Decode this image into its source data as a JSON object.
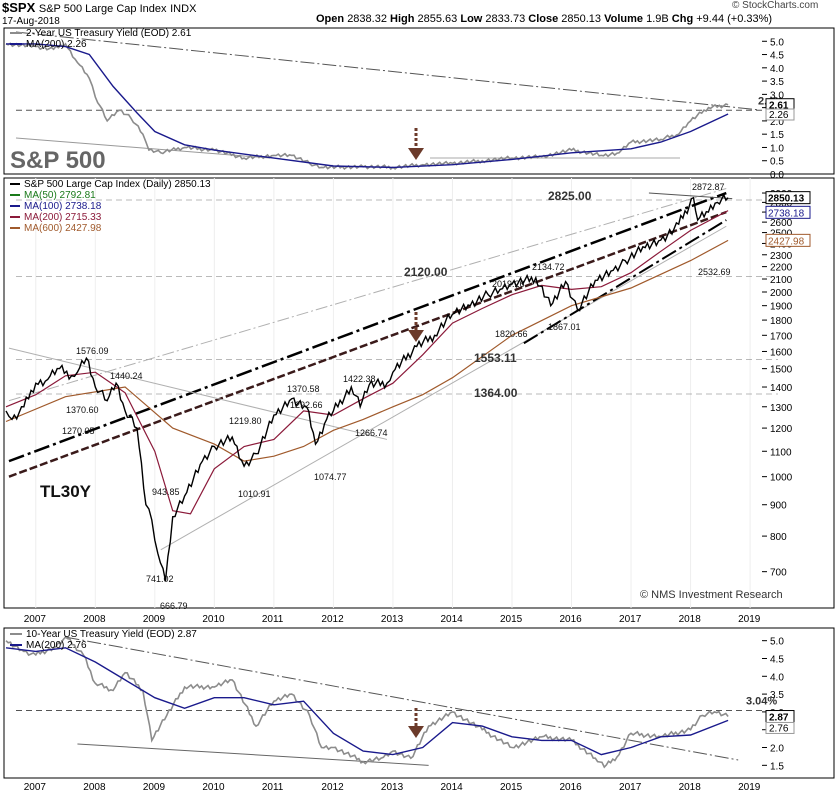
{
  "header": {
    "symbol": "$SPX",
    "name": "S&P 500 Large Cap Index",
    "exchange": "INDX",
    "date": "17-Aug-2018",
    "watermark": "© StockCharts.com",
    "open_label": "Open",
    "open": "2838.32",
    "high_label": "High",
    "high": "2855.63",
    "low_label": "Low",
    "low": "2833.73",
    "close_label": "Close",
    "close": "2850.13",
    "volume_label": "Volume",
    "volume": "1.9B",
    "chg_label": "Chg",
    "chg": "+9.44 (+0.33%)"
  },
  "colors": {
    "price": "#000000",
    "ma50": "#1a7a1a",
    "ma100": "#1a1a8c",
    "ma200_price": "#8b1a3a",
    "ma600": "#a05a2c",
    "yield_line": "#8c8c8c",
    "yield_ma": "#1a1a8c",
    "trend_dark": "#000000",
    "trend_brown": "#3a1a1a",
    "trend_light": "#b0b0b0",
    "arrow": "#6b3a2a"
  },
  "chart_data": [
    {
      "type": "line",
      "title": "2-Year US Treasury Yield (EOD) 2.61",
      "overlay_label": "S&P 500",
      "legend": [
        "2-Year US Treasury Yield (EOD) 2.61",
        "MA(200) 2.26"
      ],
      "x_ticks": [],
      "y_ticks": [
        "5.0",
        "4.5",
        "4.0",
        "3.5",
        "3.0",
        "2.5",
        "2.0",
        "1.5",
        "1.0",
        "0.5",
        "0.0"
      ],
      "ylim": [
        0,
        5.5
      ],
      "xlim": [
        2006.5,
        2019.2
      ],
      "last_value": "2.61",
      "ma_value": "2.26",
      "annotations": [
        "2.4%"
      ],
      "series": [
        {
          "name": "2-Year Yield",
          "x": [
            2006.5,
            2007.0,
            2007.3,
            2007.5,
            2007.7,
            2007.9,
            2008.0,
            2008.2,
            2008.4,
            2008.6,
            2008.8,
            2008.9,
            2009.1,
            2009.5,
            2010.0,
            2010.5,
            2011.0,
            2011.3,
            2011.6,
            2011.8,
            2012.5,
            2013.0,
            2013.5,
            2014.0,
            2014.5,
            2015.0,
            2015.5,
            2016.0,
            2016.5,
            2016.8,
            2017.0,
            2017.5,
            2017.8,
            2018.0,
            2018.3,
            2018.63
          ],
          "values": [
            4.9,
            4.8,
            4.7,
            4.9,
            4.2,
            3.6,
            2.9,
            2.0,
            2.4,
            2.1,
            1.5,
            0.9,
            0.8,
            1.0,
            0.9,
            0.6,
            0.7,
            0.7,
            0.4,
            0.25,
            0.27,
            0.25,
            0.35,
            0.4,
            0.5,
            0.6,
            0.65,
            0.9,
            0.7,
            0.8,
            1.2,
            1.3,
            1.5,
            2.0,
            2.5,
            2.61
          ]
        },
        {
          "name": "MA(200)",
          "x": [
            2006.5,
            2007.0,
            2007.5,
            2007.9,
            2008.3,
            2008.7,
            2009.0,
            2009.5,
            2010.0,
            2011.0,
            2012.0,
            2013.0,
            2014.0,
            2015.0,
            2016.0,
            2017.0,
            2017.5,
            2018.0,
            2018.63
          ],
          "values": [
            4.9,
            4.9,
            4.8,
            4.5,
            3.3,
            2.3,
            1.6,
            1.1,
            0.9,
            0.6,
            0.3,
            0.25,
            0.35,
            0.55,
            0.8,
            0.95,
            1.2,
            1.6,
            2.26
          ]
        }
      ]
    },
    {
      "type": "line",
      "title": "S&P 500 Large Cap Index (Daily) 2850.13",
      "legend": [
        "S&P 500 Large Cap Index (Daily) 2850.13",
        "MA(50) 2792.81",
        "MA(100) 2738.18",
        "MA(200) 2715.33",
        "MA(600) 2427.98"
      ],
      "x_ticks": [
        "2007",
        "2008",
        "2009",
        "2010",
        "2011",
        "2012",
        "2013",
        "2014",
        "2015",
        "2016",
        "2017",
        "2018",
        "2019"
      ],
      "y_ticks": [
        "2900",
        "2800",
        "2700",
        "2600",
        "2500",
        "2400",
        "2300",
        "2200",
        "2100",
        "2000",
        "1900",
        "1800",
        "1700",
        "1600",
        "1500",
        "1400",
        "1300",
        "1200",
        "1100",
        "1000",
        "900",
        "800",
        "700"
      ],
      "ylim": [
        620,
        3000
      ],
      "scale": "log",
      "xlim": [
        2006.5,
        2019.2
      ],
      "value_tags": [
        "2850.13",
        "2738.18",
        "2427.98"
      ],
      "left_label": "TL30Y",
      "credit": "© NMS Investment Research",
      "level_labels": [
        "2825.00",
        "2120.00",
        "1553.11",
        "1364.00"
      ],
      "price_labels": [
        "2872.87",
        "2532.69",
        "2134.72",
        "2019.26",
        "1820.66",
        "1867.01",
        "1576.09",
        "1440.24",
        "1370.60",
        "1270.05",
        "1219.80",
        "1370.58",
        "1292.66",
        "1422.38",
        "1266.74",
        "1074.77",
        "1010.91",
        "943.85",
        "741.02",
        "666.79"
      ],
      "series": [
        {
          "name": "S&P 500",
          "x": [
            2006.5,
            2006.6,
            2006.8,
            2007.0,
            2007.2,
            2007.4,
            2007.6,
            2007.7,
            2007.85,
            2008.0,
            2008.2,
            2008.35,
            2008.5,
            2008.7,
            2008.85,
            2008.95,
            2009.05,
            2009.18,
            2009.3,
            2009.5,
            2009.8,
            2010.0,
            2010.3,
            2010.5,
            2010.7,
            2011.0,
            2011.3,
            2011.55,
            2011.7,
            2011.85,
            2012.0,
            2012.3,
            2012.45,
            2012.6,
            2012.9,
            2013.0,
            2013.4,
            2013.7,
            2014.0,
            2014.3,
            2014.6,
            2014.8,
            2015.0,
            2015.4,
            2015.65,
            2015.9,
            2016.1,
            2016.4,
            2016.7,
            2016.9,
            2017.2,
            2017.5,
            2017.8,
            2018.05,
            2018.12,
            2018.3,
            2018.45,
            2018.63
          ],
          "values": [
            1280,
            1240,
            1300,
            1420,
            1440,
            1500,
            1460,
            1480,
            1560,
            1400,
            1330,
            1420,
            1280,
            1200,
            900,
            850,
            750,
            676,
            860,
            930,
            1060,
            1120,
            1160,
            1040,
            1090,
            1260,
            1340,
            1300,
            1130,
            1220,
            1280,
            1400,
            1300,
            1410,
            1420,
            1480,
            1630,
            1700,
            1840,
            1900,
            1980,
            2020,
            2060,
            2110,
            1900,
            2080,
            1870,
            2090,
            2170,
            2250,
            2370,
            2430,
            2580,
            2850,
            2620,
            2700,
            2800,
            2850
          ]
        },
        {
          "name": "MA(200)",
          "x": [
            2006.5,
            2007.0,
            2007.5,
            2008.0,
            2008.5,
            2009.0,
            2009.3,
            2009.6,
            2010.0,
            2010.5,
            2011.0,
            2011.5,
            2012.0,
            2012.5,
            2013.0,
            2013.5,
            2014.0,
            2014.5,
            2015.0,
            2015.5,
            2016.0,
            2016.5,
            2017.0,
            2017.5,
            2018.0,
            2018.63
          ],
          "values": [
            1300,
            1360,
            1460,
            1480,
            1370,
            1100,
            880,
            870,
            1030,
            1120,
            1150,
            1280,
            1260,
            1340,
            1420,
            1580,
            1780,
            1880,
            1980,
            2050,
            2020,
            2040,
            2150,
            2330,
            2520,
            2715
          ]
        },
        {
          "name": "MA(600)",
          "x": [
            2006.5,
            2007.5,
            2008.5,
            2009.3,
            2010.0,
            2010.5,
            2011.0,
            2011.5,
            2012.0,
            2012.5,
            2013.0,
            2013.5,
            2014.0,
            2015.0,
            2016.0,
            2017.0,
            2018.0,
            2018.63
          ],
          "values": [
            1230,
            1350,
            1400,
            1200,
            1130,
            1060,
            1080,
            1120,
            1190,
            1240,
            1300,
            1360,
            1450,
            1700,
            1900,
            2030,
            2250,
            2428
          ]
        }
      ]
    },
    {
      "type": "line",
      "title": "10-Year US Treasury Yield (EOD) 2.87",
      "legend": [
        "10-Year US Treasury Yield (EOD) 2.87",
        "MA(200) 2.76"
      ],
      "x_ticks": [
        "2007",
        "2008",
        "2009",
        "2010",
        "2011",
        "2012",
        "2013",
        "2014",
        "2015",
        "2016",
        "2017",
        "2018",
        "2019"
      ],
      "y_ticks": [
        "5.0",
        "4.5",
        "4.0",
        "3.5",
        "3.0",
        "2.5",
        "2.0",
        "1.5"
      ],
      "ylim": [
        1.2,
        5.3
      ],
      "xlim": [
        2006.5,
        2019.2
      ],
      "last_value": "2.87",
      "ma_value": "2.76",
      "annotations": [
        "3.04%"
      ],
      "series": [
        {
          "name": "10-Year Yield",
          "x": [
            2006.5,
            2006.8,
            2007.0,
            2007.3,
            2007.5,
            2007.8,
            2008.0,
            2008.3,
            2008.5,
            2008.8,
            2008.95,
            2009.2,
            2009.5,
            2010.0,
            2010.3,
            2010.7,
            2011.0,
            2011.3,
            2011.6,
            2011.8,
            2012.0,
            2012.5,
            2012.8,
            2013.0,
            2013.3,
            2013.6,
            2014.0,
            2014.5,
            2015.0,
            2015.5,
            2016.0,
            2016.4,
            2016.55,
            2016.8,
            2017.0,
            2017.5,
            2018.0,
            2018.2,
            2018.4,
            2018.63
          ],
          "values": [
            5.0,
            4.7,
            4.6,
            4.8,
            5.1,
            4.6,
            3.8,
            3.6,
            4.1,
            3.6,
            2.2,
            2.9,
            3.7,
            3.7,
            3.9,
            2.6,
            3.3,
            3.5,
            2.9,
            2.0,
            2.0,
            1.6,
            1.7,
            1.9,
            1.7,
            2.6,
            3.0,
            2.5,
            2.0,
            2.3,
            2.2,
            1.7,
            1.45,
            1.8,
            2.4,
            2.3,
            2.5,
            2.9,
            3.0,
            2.87
          ]
        },
        {
          "name": "MA(200)",
          "x": [
            2006.5,
            2007.0,
            2007.5,
            2008.0,
            2008.5,
            2009.0,
            2009.5,
            2010.0,
            2010.5,
            2011.0,
            2011.5,
            2012.0,
            2012.5,
            2013.0,
            2013.5,
            2014.0,
            2014.5,
            2015.0,
            2015.5,
            2016.0,
            2016.5,
            2017.0,
            2017.5,
            2018.0,
            2018.63
          ],
          "values": [
            4.8,
            4.7,
            4.8,
            4.4,
            3.9,
            3.4,
            3.1,
            3.4,
            3.4,
            3.2,
            3.3,
            2.4,
            1.9,
            1.8,
            2.0,
            2.7,
            2.6,
            2.3,
            2.2,
            2.2,
            1.8,
            2.0,
            2.3,
            2.35,
            2.76
          ]
        }
      ]
    }
  ]
}
